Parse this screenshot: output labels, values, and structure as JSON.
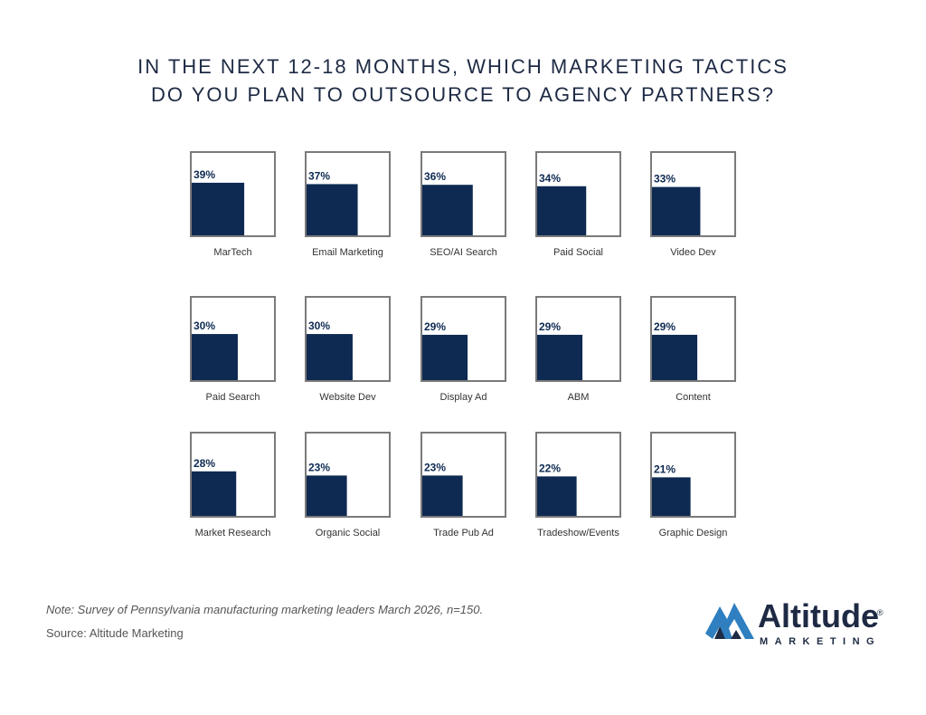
{
  "title_lines": [
    "IN THE NEXT 12-18 MONTHS, WHICH MARKETING TACTICS",
    "DO YOU PLAN TO OUTSOURCE TO AGENCY PARTNERS?"
  ],
  "note": "Note: Survey of Pennsylvania manufacturing marketing leaders March 2026, n=150.",
  "source": "Source: Altitude Marketing",
  "logo": {
    "word": "Altitude",
    "sub": "MARKETING",
    "reg": "®"
  },
  "colors": {
    "fill": "#0e2a52",
    "box_border": "#7a7a7a",
    "label": "#333333",
    "title": "#1e2a44",
    "logo_blue": "#2f7fc1"
  },
  "chart_data": {
    "type": "bar",
    "title": "IN THE NEXT 12-18 MONTHS, WHICH MARKETING TACTICS DO YOU PLAN TO OUTSOURCE TO AGENCY PARTNERS?",
    "unit": "%",
    "categories": [
      "MarTech",
      "Email Marketing",
      "SEO/AI Search",
      "Paid Social",
      "Video Dev",
      "Paid Search",
      "Website Dev",
      "Display Ad",
      "ABM",
      "Content",
      "Market Research",
      "Organic Social",
      "Trade Pub Ad",
      "Tradeshow/Events",
      "Graphic Design"
    ],
    "values": [
      39,
      37,
      36,
      34,
      33,
      30,
      30,
      29,
      29,
      29,
      28,
      23,
      23,
      22,
      21
    ],
    "value_labels": [
      "39%",
      "37%",
      "36%",
      "34%",
      "33%",
      "30%",
      "30%",
      "29%",
      "29%",
      "29%",
      "28%",
      "23%",
      "23%",
      "22%",
      "21%"
    ],
    "ylim": [
      0,
      100
    ],
    "grid": false,
    "legend": "none"
  }
}
